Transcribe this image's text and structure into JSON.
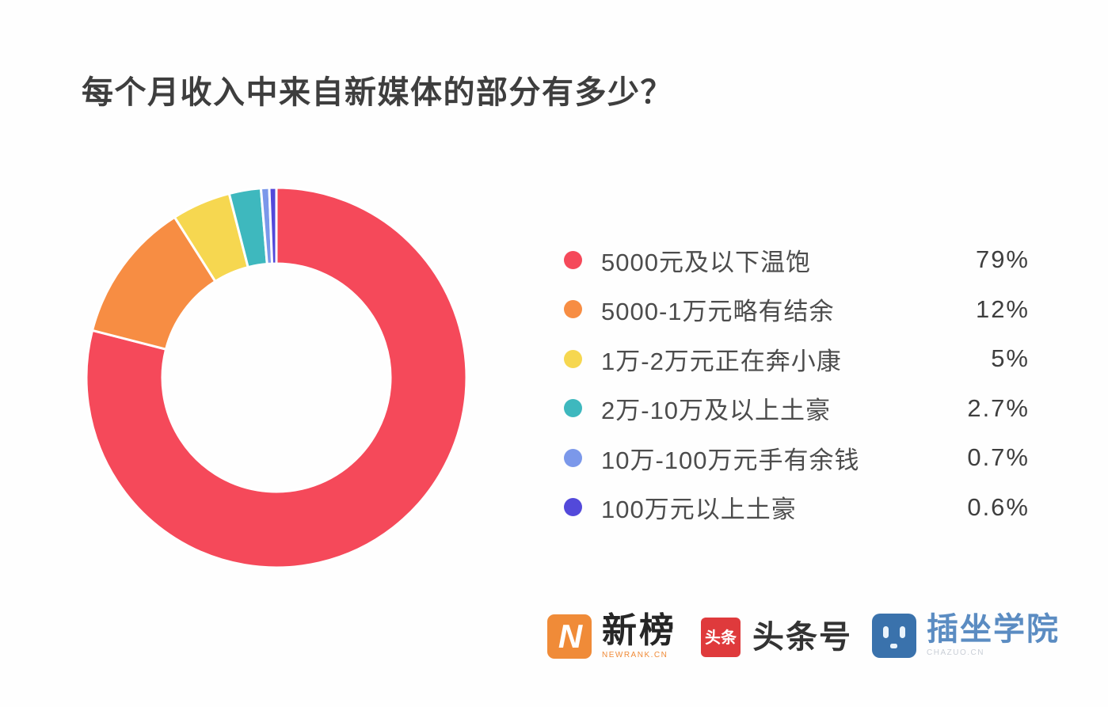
{
  "chart_data": {
    "type": "pie",
    "subtype": "donut",
    "title": "每个月收入中来自新媒体的部分有多少？",
    "categories": [
      "5000元及以下温饱",
      "5000-1万元略有结余",
      "1万-2万元正在奔小康",
      "2万-10万及以上土豪",
      "10万-100万元手有余钱",
      "100万元以上土豪"
    ],
    "values": [
      79,
      12,
      5,
      2.7,
      0.7,
      0.6
    ],
    "value_labels": [
      "79%",
      "12%",
      "5%",
      "2.7%",
      "0.7%",
      "0.6%"
    ],
    "colors": [
      "#f5495a",
      "#f78d43",
      "#f6d750",
      "#3eb8be",
      "#7b98ea",
      "#5349da"
    ],
    "start_angle_deg": 0,
    "direction": "clockwise",
    "inner_radius_ratio": 0.6,
    "slice_gap_color": "#ffffff",
    "legend_position": "right"
  },
  "footer": {
    "logos": {
      "newrank": {
        "name": "新榜",
        "sub": "NEWRANK.CN",
        "icon_letter": "N",
        "brand_color": "#f08b38"
      },
      "toutiao": {
        "name": "头条号",
        "icon_text": "头条",
        "brand_color": "#df3a3c"
      },
      "chazuo": {
        "name": "插坐学院",
        "sub": "CHAZUO.CN",
        "brand_color": "#3a72ac"
      }
    }
  }
}
